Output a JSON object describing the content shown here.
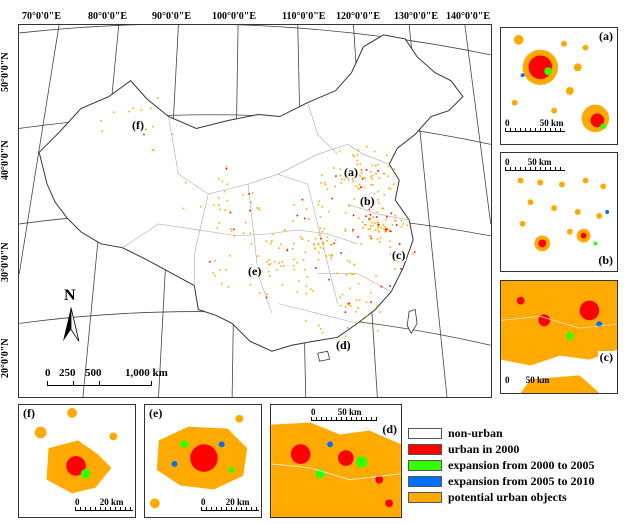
{
  "map": {
    "longitude_labels": [
      "70°0'0\"E",
      "80°0'0\"E",
      "90°0'0\"E",
      "100°0'0\"E",
      "110°0'0\"E",
      "120°0'0\"E",
      "130°0'0\"E",
      "140°0'0\"E"
    ],
    "latitude_labels": [
      "50°0'0\"N",
      "40°0'0\"N",
      "30°0'0\"N",
      "20°0'0\"N"
    ],
    "region_markers": [
      "(a)",
      "(b)",
      "(c)",
      "(d)",
      "(e)",
      "(f)"
    ],
    "north_label": "N",
    "scale_labels": [
      "0",
      "250",
      "500",
      "1,000 km"
    ]
  },
  "insets": [
    {
      "id": "a",
      "label": "(a)",
      "scale": "50 km",
      "scale_zero": "0"
    },
    {
      "id": "b",
      "label": "(b)",
      "scale": "50 km",
      "scale_zero": "0"
    },
    {
      "id": "c",
      "label": "(c)",
      "scale": "50 km",
      "scale_zero": "0"
    },
    {
      "id": "f",
      "label": "(f)",
      "scale": "20 km",
      "scale_zero": "0"
    },
    {
      "id": "e",
      "label": "(e)",
      "scale": "20 km",
      "scale_zero": "0"
    },
    {
      "id": "d",
      "label": "(d)",
      "scale": "50 km",
      "scale_zero": "0"
    }
  ],
  "legend": [
    {
      "label": "non-urban",
      "color": "#ffffff"
    },
    {
      "label": "urban in 2000",
      "color": "#ff0000"
    },
    {
      "label": "expansion from 2000 to 2005",
      "color": "#33ff00"
    },
    {
      "label": "expansion from 2005 to 2010",
      "color": "#0070ff"
    },
    {
      "label": "potential urban objects",
      "color": "#ffaa00"
    }
  ]
}
